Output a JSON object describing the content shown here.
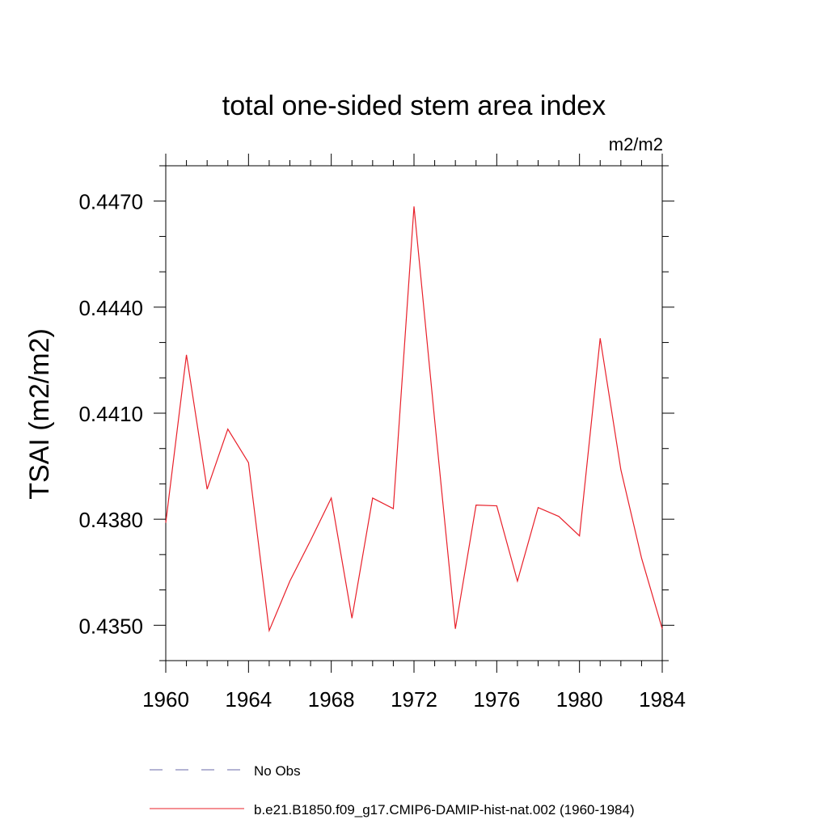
{
  "chart_data": {
    "type": "line",
    "title": "total one-sided stem area index",
    "units": "m2/m2",
    "ylabel": "TSAI  (m2/m2)",
    "xlabel": "",
    "xlim": [
      1960,
      1984
    ],
    "ylim": [
      0.434,
      0.448
    ],
    "x_ticks": [
      1960,
      1964,
      1968,
      1972,
      1976,
      1980,
      1984
    ],
    "x_tick_labels": [
      "1960",
      "1964",
      "1968",
      "1972",
      "1976",
      "1980",
      "1984"
    ],
    "y_ticks": [
      0.435,
      0.438,
      0.441,
      0.444,
      0.447
    ],
    "y_tick_labels": [
      "0.4350",
      "0.4380",
      "0.4410",
      "0.4440",
      "0.4470"
    ],
    "grid": false,
    "legend_placement": "bottom",
    "series": [
      {
        "name": "b.e21.B1850.f09_g17.CMIP6-DAMIP-hist-nat.002 (1960-1984)",
        "color": "#e8202a",
        "style": "solid",
        "x": [
          1960,
          1961,
          1962,
          1963,
          1964,
          1965,
          1966,
          1967,
          1968,
          1969,
          1970,
          1971,
          1972,
          1973,
          1974,
          1975,
          1976,
          1977,
          1978,
          1979,
          1980,
          1981,
          1982,
          1983,
          1984
        ],
        "values": [
          0.4379,
          0.44265,
          0.43885,
          0.44055,
          0.4396,
          0.43485,
          0.43625,
          0.4374,
          0.4386,
          0.4352,
          0.4386,
          0.4383,
          0.44685,
          0.4408,
          0.4349,
          0.4384,
          0.43838,
          0.43625,
          0.43833,
          0.43808,
          0.43753,
          0.44312,
          0.4394,
          0.4369,
          0.4349
        ]
      }
    ],
    "legend": [
      {
        "label": "No Obs",
        "color": "#6a6aa8",
        "style": "dashed"
      },
      {
        "label": "b.e21.B1850.f09_g17.CMIP6-DAMIP-hist-nat.002 (1960-1984)",
        "color": "#e8202a",
        "style": "solid"
      }
    ]
  }
}
